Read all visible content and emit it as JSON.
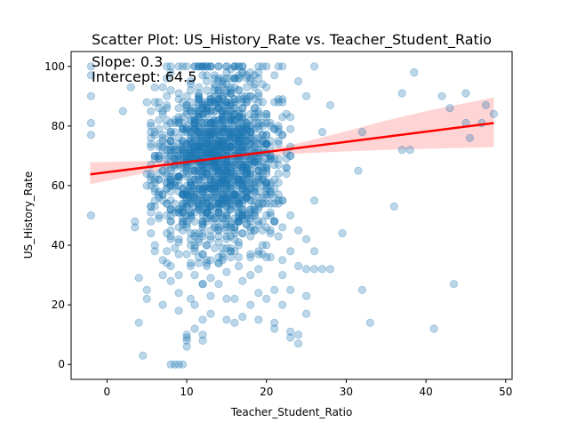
{
  "chart_data": {
    "type": "scatter",
    "title": "Scatter Plot: US_History_Rate vs. Teacher_Student_Ratio",
    "xlabel": "Teacher_Student_Ratio",
    "ylabel": "US_History_Rate",
    "xlim": [
      -4.5,
      50.8
    ],
    "ylim": [
      -5,
      105
    ],
    "xticks": [
      0,
      10,
      20,
      30,
      40,
      50
    ],
    "yticks": [
      0,
      20,
      40,
      60,
      80,
      100
    ],
    "grid": false,
    "annotations": {
      "slope": "Slope: 0.3",
      "intercept": "Intercept: 64.5"
    },
    "regression": {
      "slope": 0.34,
      "intercept": 64.5,
      "x_range": [
        -2.1,
        48.5
      ],
      "ci_band": [
        {
          "x": -2.1,
          "lower": 60.5,
          "upper": 67.8
        },
        {
          "x": 5,
          "lower": 64.3,
          "upper": 68.2
        },
        {
          "x": 10,
          "lower": 66.6,
          "upper": 68.9
        },
        {
          "x": 14,
          "lower": 68.4,
          "upper": 69.8
        },
        {
          "x": 20,
          "lower": 70.0,
          "upper": 72.0
        },
        {
          "x": 25,
          "lower": 70.9,
          "upper": 74.8
        },
        {
          "x": 30,
          "lower": 71.5,
          "upper": 78.3
        },
        {
          "x": 35,
          "lower": 72.0,
          "upper": 81.8
        },
        {
          "x": 40,
          "lower": 72.4,
          "upper": 85.0
        },
        {
          "x": 48.5,
          "lower": 72.9,
          "upper": 89.6
        }
      ],
      "line_color": "#ff0000",
      "band_color": "#ffcccc"
    },
    "point_color": "#1f77b4",
    "point_alpha": 0.3,
    "series": [
      {
        "points": [
          [
            -2,
            100
          ],
          [
            -2,
            97
          ],
          [
            -2,
            90
          ],
          [
            -2,
            81
          ],
          [
            -2,
            77
          ],
          [
            -2,
            50
          ],
          [
            2,
            85
          ],
          [
            3,
            93
          ],
          [
            3.5,
            46
          ],
          [
            3.5,
            48
          ],
          [
            4,
            29
          ],
          [
            4,
            14
          ],
          [
            4.5,
            3
          ],
          [
            5,
            60
          ],
          [
            5,
            22
          ],
          [
            5,
            25
          ],
          [
            6,
            40
          ],
          [
            6,
            38
          ],
          [
            6,
            70
          ],
          [
            6,
            62
          ],
          [
            7,
            30
          ],
          [
            7,
            55
          ],
          [
            7,
            65
          ],
          [
            7,
            75
          ],
          [
            7,
            85
          ],
          [
            7,
            35
          ],
          [
            7,
            20
          ],
          [
            8,
            0
          ],
          [
            8,
            100
          ],
          [
            8,
            92
          ],
          [
            8,
            45
          ],
          [
            8,
            33
          ],
          [
            8,
            28
          ],
          [
            8,
            52
          ],
          [
            8.5,
            0
          ],
          [
            9,
            0
          ],
          [
            9,
            24
          ],
          [
            9,
            18
          ],
          [
            9,
            100
          ],
          [
            9.5,
            0
          ],
          [
            10,
            10
          ],
          [
            10,
            9
          ],
          [
            10,
            8
          ],
          [
            10,
            6
          ],
          [
            10,
            100
          ],
          [
            10.5,
            22
          ],
          [
            11,
            30
          ],
          [
            11,
            12
          ],
          [
            11,
            20
          ],
          [
            12,
            10
          ],
          [
            12,
            8
          ],
          [
            12,
            15
          ],
          [
            12,
            27
          ],
          [
            13,
            100
          ],
          [
            13,
            17
          ],
          [
            13,
            35
          ],
          [
            14,
            34
          ],
          [
            14,
            27
          ],
          [
            14,
            100
          ],
          [
            15,
            22
          ],
          [
            15,
            15
          ],
          [
            15,
            31
          ],
          [
            16,
            100
          ],
          [
            16,
            14
          ],
          [
            16,
            22
          ],
          [
            16,
            45
          ],
          [
            17,
            16
          ],
          [
            17,
            28
          ],
          [
            17,
            100
          ],
          [
            18,
            20
          ],
          [
            18,
            30
          ],
          [
            18,
            37
          ],
          [
            19,
            24
          ],
          [
            19,
            32
          ],
          [
            19,
            15
          ],
          [
            20,
            22
          ],
          [
            20,
            36
          ],
          [
            20,
            40
          ],
          [
            21,
            12
          ],
          [
            21,
            25
          ],
          [
            21,
            14
          ],
          [
            21,
            48
          ],
          [
            22,
            20
          ],
          [
            22,
            30
          ],
          [
            22,
            55
          ],
          [
            23,
            9
          ],
          [
            23,
            11
          ],
          [
            23,
            25
          ],
          [
            23,
            38
          ],
          [
            24,
            7
          ],
          [
            24,
            10
          ],
          [
            24,
            33
          ],
          [
            24,
            45
          ],
          [
            25,
            23
          ],
          [
            25,
            17
          ],
          [
            25,
            32
          ],
          [
            25,
            42
          ],
          [
            26,
            32
          ],
          [
            26,
            38
          ],
          [
            26,
            55
          ],
          [
            27,
            32
          ],
          [
            27,
            78
          ],
          [
            28,
            32
          ],
          [
            28,
            87
          ],
          [
            26,
            100
          ],
          [
            24,
            95
          ],
          [
            25,
            90
          ],
          [
            23,
            83
          ],
          [
            22,
            88
          ],
          [
            21,
            97
          ],
          [
            20,
            93
          ],
          [
            29.5,
            44
          ],
          [
            31.5,
            65
          ],
          [
            32,
            78
          ],
          [
            32,
            25
          ],
          [
            33,
            14
          ],
          [
            36,
            53
          ],
          [
            37,
            91
          ],
          [
            37,
            72
          ],
          [
            38,
            72
          ],
          [
            38.5,
            98
          ],
          [
            41,
            12
          ],
          [
            42,
            90
          ],
          [
            43,
            86
          ],
          [
            43.5,
            27
          ],
          [
            45,
            91
          ],
          [
            45,
            81
          ],
          [
            45.5,
            76
          ],
          [
            47,
            81
          ],
          [
            47.5,
            87
          ],
          [
            48.5,
            84
          ]
        ],
        "cloud": {
          "count": 1500,
          "x_mean": 14,
          "x_sd": 3.8,
          "y_mean": 69,
          "y_sd": 15
        }
      }
    ]
  }
}
